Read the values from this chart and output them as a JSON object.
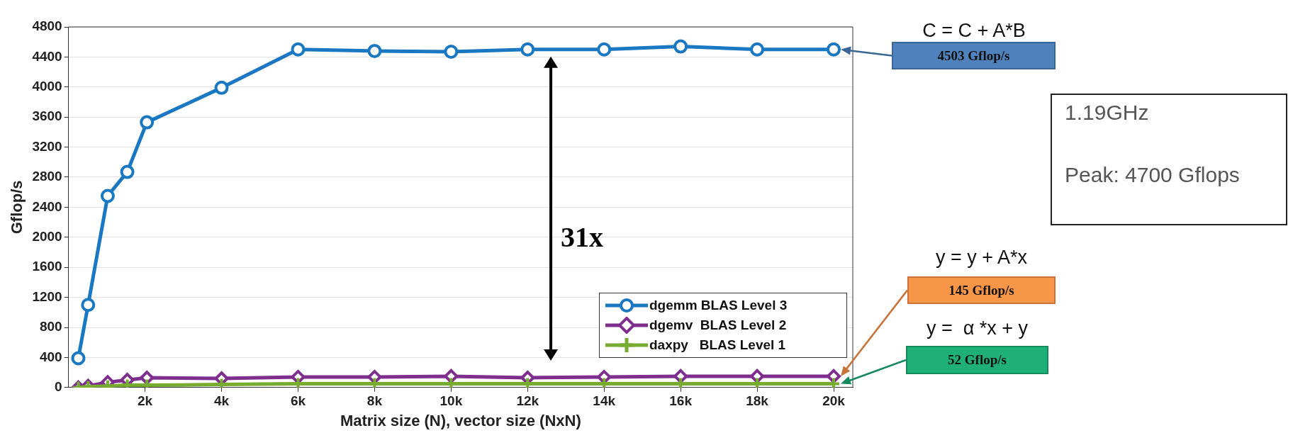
{
  "chart_data": {
    "type": "line",
    "xlabel": "Matrix size (N), vector size (NxN)",
    "ylabel": "Gflop/s",
    "x": [
      256,
      512,
      1024,
      1536,
      2048,
      4000,
      6000,
      8000,
      10000,
      12000,
      14000,
      16000,
      18000,
      20000
    ],
    "series": [
      {
        "name": "dgemm BLAS Level 3",
        "color": "#1a78c2",
        "marker": "circle",
        "values": [
          390,
          1100,
          2550,
          2870,
          3530,
          3990,
          4500,
          4480,
          4470,
          4500,
          4500,
          4540,
          4500,
          4500
        ]
      },
      {
        "name": "dgemv  BLAS Level 2",
        "color": "#7e2f8e",
        "marker": "diamond",
        "values": [
          0,
          20,
          70,
          100,
          130,
          120,
          140,
          140,
          150,
          130,
          140,
          150,
          150,
          150
        ]
      },
      {
        "name": "daxpy   BLAS Level 1",
        "color": "#77ac30",
        "marker": "cross",
        "values": [
          0,
          10,
          20,
          30,
          30,
          40,
          50,
          50,
          50,
          50,
          50,
          50,
          50,
          50
        ]
      }
    ],
    "xlim": [
      0,
      20500
    ],
    "xticks": [
      {
        "value": 2000,
        "label": "2k"
      },
      {
        "value": 4000,
        "label": "4k"
      },
      {
        "value": 6000,
        "label": "6k"
      },
      {
        "value": 8000,
        "label": "8k"
      },
      {
        "value": 10000,
        "label": "10k"
      },
      {
        "value": 12000,
        "label": "12k"
      },
      {
        "value": 14000,
        "label": "14k"
      },
      {
        "value": 16000,
        "label": "16k"
      },
      {
        "value": 18000,
        "label": "18k"
      },
      {
        "value": 20000,
        "label": "20k"
      }
    ],
    "ylim": [
      0,
      4800
    ],
    "yticks": [
      0,
      400,
      800,
      1200,
      1600,
      2000,
      2400,
      2800,
      3200,
      3600,
      4000,
      4400,
      4800
    ],
    "grid": "y",
    "legend": "bottom right",
    "line_style": "solid",
    "annotations": [
      "C = C + A*B",
      "4503 Gflop/s",
      "y = y + A*x",
      "145 Gflop/s",
      "y =  α *x + y",
      "52 Gflop/s",
      "31x",
      "1.19GHz",
      "Peak: 4700 Gflops"
    ]
  }
}
